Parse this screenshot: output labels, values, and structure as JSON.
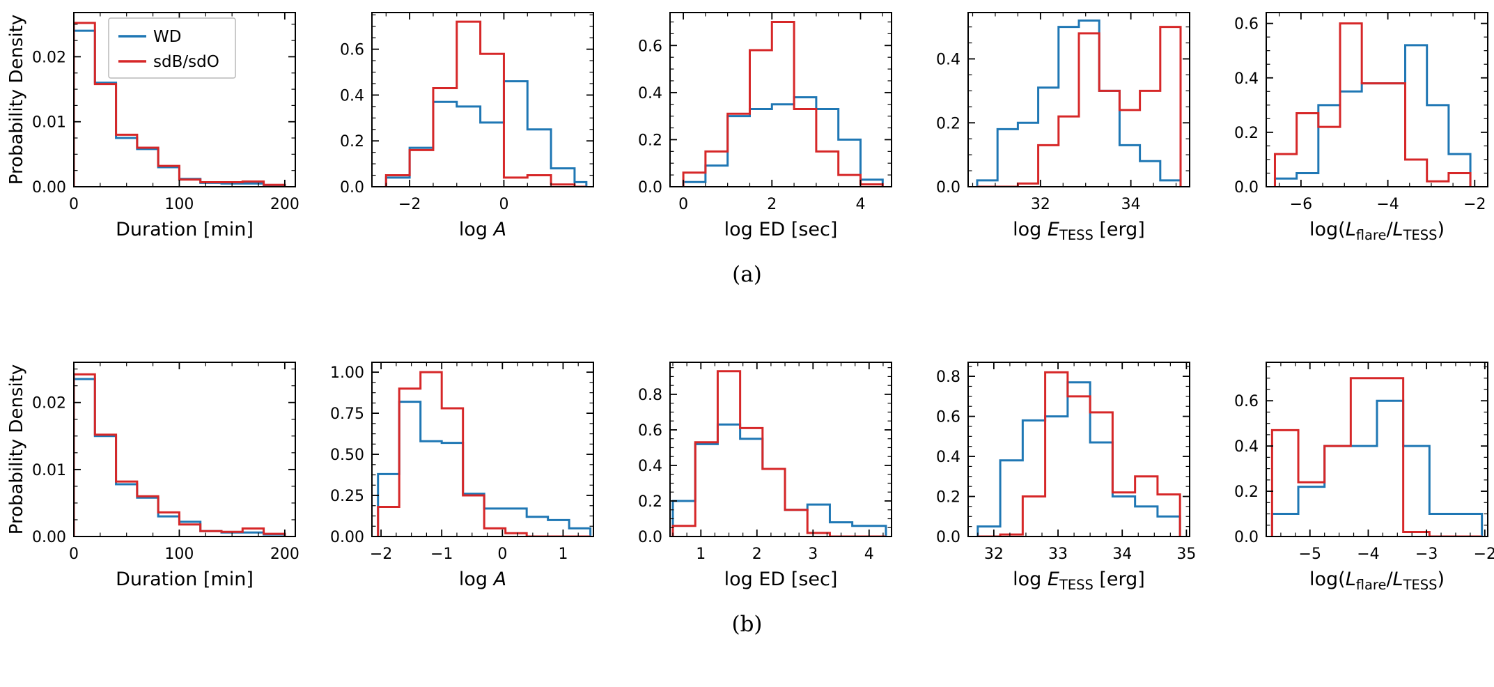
{
  "figure": {
    "captions": [
      "(a)",
      "(b)"
    ],
    "ylabel": "Probability Density",
    "legend": {
      "entries": [
        {
          "label": "WD"
        },
        {
          "label": "sdB/sdO"
        }
      ]
    },
    "colors": {
      "WD": "#1f77b4",
      "sdB/sdO": "#d62728"
    }
  },
  "chart_data": [
    {
      "id": "a1",
      "row": 0,
      "col": 0,
      "type": "step-histogram",
      "legend": true,
      "xlabel": [
        {
          "t": "Duration [min]"
        }
      ],
      "ylabel": "Probability Density",
      "xlim": [
        0,
        210
      ],
      "ylim": [
        0,
        0.0268
      ],
      "xticks": [
        0,
        100,
        200
      ],
      "xtick_labels": [
        "0",
        "100",
        "200"
      ],
      "yticks": [
        0,
        0.01,
        0.02
      ],
      "ytick_labels": [
        "0.00",
        "0.01",
        "0.02"
      ],
      "bin_edges": [
        0,
        20,
        40,
        60,
        80,
        100,
        120,
        140,
        160,
        180,
        200
      ],
      "series": [
        {
          "name": "WD",
          "values": [
            0.024,
            0.016,
            0.0075,
            0.0058,
            0.003,
            0.0012,
            0.0006,
            0.0005,
            0.0005,
            0.0002
          ]
        },
        {
          "name": "sdB/sdO",
          "values": [
            0.0252,
            0.0158,
            0.008,
            0.006,
            0.0032,
            0.0011,
            0.0007,
            0.0007,
            0.0008,
            0.0003
          ]
        }
      ]
    },
    {
      "id": "a2",
      "row": 0,
      "col": 1,
      "type": "step-histogram",
      "xlabel": [
        {
          "t": "log "
        },
        {
          "t": "A",
          "i": true
        }
      ],
      "xlim": [
        -2.8,
        1.9
      ],
      "ylim": [
        0,
        0.76
      ],
      "xticks": [
        -2,
        0
      ],
      "xtick_labels": [
        "−2",
        "0"
      ],
      "yticks": [
        0,
        0.2,
        0.4,
        0.6
      ],
      "ytick_labels": [
        "0.0",
        "0.2",
        "0.4",
        "0.6"
      ],
      "bin_edges": [
        -2.5,
        -2,
        -1.5,
        -1,
        -0.5,
        0,
        0.5,
        1,
        1.5,
        1.75
      ],
      "series": [
        {
          "name": "WD",
          "values": [
            0.04,
            0.17,
            0.37,
            0.35,
            0.28,
            0.46,
            0.25,
            0.08,
            0.02
          ]
        },
        {
          "name": "sdB/sdO",
          "values": [
            0.05,
            0.16,
            0.43,
            0.72,
            0.58,
            0.04,
            0.05,
            0.01,
            0
          ]
        }
      ]
    },
    {
      "id": "a3",
      "row": 0,
      "col": 2,
      "type": "step-histogram",
      "xlabel": [
        {
          "t": "log ED [sec]"
        }
      ],
      "xlim": [
        -0.3,
        4.7
      ],
      "ylim": [
        0,
        0.74
      ],
      "xticks": [
        0,
        2,
        4
      ],
      "xtick_labels": [
        "0",
        "2",
        "4"
      ],
      "yticks": [
        0,
        0.2,
        0.4,
        0.6
      ],
      "ytick_labels": [
        "0.0",
        "0.2",
        "0.4",
        "0.6"
      ],
      "bin_edges": [
        0,
        0.5,
        1,
        1.5,
        2,
        2.5,
        3,
        3.5,
        4,
        4.5
      ],
      "series": [
        {
          "name": "WD",
          "values": [
            0.02,
            0.09,
            0.3,
            0.33,
            0.35,
            0.38,
            0.33,
            0.2,
            0.03
          ]
        },
        {
          "name": "sdB/sdO",
          "values": [
            0.06,
            0.15,
            0.31,
            0.58,
            0.7,
            0.33,
            0.15,
            0.05,
            0.01
          ]
        }
      ]
    },
    {
      "id": "a4",
      "row": 0,
      "col": 3,
      "type": "step-histogram",
      "xlabel": [
        {
          "t": "log "
        },
        {
          "t": "E",
          "i": true
        },
        {
          "t": "TESS",
          "sub": true
        },
        {
          "t": " [erg]"
        }
      ],
      "xlim": [
        30.4,
        35.3
      ],
      "ylim": [
        0,
        0.545
      ],
      "xticks": [
        32,
        34
      ],
      "xtick_labels": [
        "32",
        "34"
      ],
      "yticks": [
        0,
        0.2,
        0.4
      ],
      "ytick_labels": [
        "0.0",
        "0.2",
        "0.4"
      ],
      "bin_edges": [
        30.6,
        31.05,
        31.5,
        31.95,
        32.4,
        32.85,
        33.3,
        33.75,
        34.2,
        34.65,
        35.1
      ],
      "series": [
        {
          "name": "WD",
          "values": [
            0.02,
            0.18,
            0.2,
            0.31,
            0.5,
            0.52,
            0.3,
            0.13,
            0.08,
            0.02
          ]
        },
        {
          "name": "sdB/sdO",
          "values": [
            0,
            0,
            0.01,
            0.13,
            0.22,
            0.48,
            0.3,
            0.24,
            0.3,
            0.5
          ]
        }
      ]
    },
    {
      "id": "a5",
      "row": 0,
      "col": 4,
      "type": "step-histogram",
      "xlabel": [
        {
          "t": "log("
        },
        {
          "t": "L",
          "i": true
        },
        {
          "t": "flare",
          "sub": true
        },
        {
          "t": "/"
        },
        {
          "t": "L",
          "i": true
        },
        {
          "t": "TESS",
          "sub": true
        },
        {
          "t": ")"
        }
      ],
      "xlim": [
        -6.8,
        -1.7
      ],
      "ylim": [
        0,
        0.64
      ],
      "xticks": [
        -6,
        -4,
        -2
      ],
      "xtick_labels": [
        "−6",
        "−4",
        "−2"
      ],
      "yticks": [
        0,
        0.2,
        0.4,
        0.6
      ],
      "ytick_labels": [
        "0.0",
        "0.2",
        "0.4",
        "0.6"
      ],
      "bin_edges": [
        -6.6,
        -6.1,
        -5.6,
        -5.1,
        -4.6,
        -4.1,
        -3.6,
        -3.1,
        -2.6,
        -2.1
      ],
      "series": [
        {
          "name": "WD",
          "values": [
            0.03,
            0.05,
            0.3,
            0.35,
            0.38,
            0.38,
            0.52,
            0.3,
            0.12
          ]
        },
        {
          "name": "sdB/sdO",
          "values": [
            0.12,
            0.27,
            0.22,
            0.6,
            0.38,
            0.38,
            0.1,
            0.02,
            0.05
          ]
        }
      ]
    },
    {
      "id": "b1",
      "row": 1,
      "col": 0,
      "type": "step-histogram",
      "xlabel": [
        {
          "t": "Duration [min]"
        }
      ],
      "ylabel": "Probability Density",
      "xlim": [
        0,
        210
      ],
      "ylim": [
        0,
        0.026
      ],
      "xticks": [
        0,
        100,
        200
      ],
      "xtick_labels": [
        "0",
        "100",
        "200"
      ],
      "yticks": [
        0,
        0.01,
        0.02
      ],
      "ytick_labels": [
        "0.00",
        "0.01",
        "0.02"
      ],
      "bin_edges": [
        0,
        20,
        40,
        60,
        80,
        100,
        120,
        140,
        160,
        180,
        200
      ],
      "series": [
        {
          "name": "WD",
          "values": [
            0.0235,
            0.015,
            0.0078,
            0.0058,
            0.003,
            0.0022,
            0.0008,
            0.0006,
            0.0006,
            0.0003
          ]
        },
        {
          "name": "sdB/sdO",
          "values": [
            0.0242,
            0.0152,
            0.0082,
            0.006,
            0.0036,
            0.0018,
            0.0008,
            0.0007,
            0.0012,
            0.0004
          ]
        }
      ]
    },
    {
      "id": "b2",
      "row": 1,
      "col": 1,
      "type": "step-histogram",
      "xlabel": [
        {
          "t": "log "
        },
        {
          "t": "A",
          "i": true
        }
      ],
      "xlim": [
        -2.15,
        1.5
      ],
      "ylim": [
        0,
        1.06
      ],
      "xticks": [
        -2,
        -1,
        0,
        1
      ],
      "xtick_labels": [
        "−2",
        "−1",
        "0",
        "1"
      ],
      "yticks": [
        0,
        0.25,
        0.5,
        0.75,
        1
      ],
      "ytick_labels": [
        "0.00",
        "0.25",
        "0.50",
        "0.75",
        "1.00"
      ],
      "bin_edges": [
        -2.05,
        -1.7,
        -1.35,
        -1.0,
        -0.65,
        -0.3,
        0.05,
        0.4,
        0.75,
        1.1,
        1.45
      ],
      "series": [
        {
          "name": "WD",
          "values": [
            0.38,
            0.82,
            0.58,
            0.57,
            0.26,
            0.17,
            0.17,
            0.12,
            0.1,
            0.05
          ]
        },
        {
          "name": "sdB/sdO",
          "values": [
            0.18,
            0.9,
            1.0,
            0.78,
            0.25,
            0.05,
            0.02,
            0,
            0,
            0
          ]
        }
      ]
    },
    {
      "id": "b3",
      "row": 1,
      "col": 2,
      "type": "step-histogram",
      "xlabel": [
        {
          "t": "log ED [sec]"
        }
      ],
      "xlim": [
        0.45,
        4.4
      ],
      "ylim": [
        0,
        0.98
      ],
      "xticks": [
        1,
        2,
        3,
        4
      ],
      "xtick_labels": [
        "1",
        "2",
        "3",
        "4"
      ],
      "yticks": [
        0,
        0.2,
        0.4,
        0.6,
        0.8
      ],
      "ytick_labels": [
        "0.0",
        "0.2",
        "0.4",
        "0.6",
        "0.8"
      ],
      "bin_edges": [
        0.5,
        0.9,
        1.3,
        1.7,
        2.1,
        2.5,
        2.9,
        3.3,
        3.7,
        4.1,
        4.3
      ],
      "series": [
        {
          "name": "WD",
          "values": [
            0.2,
            0.52,
            0.63,
            0.55,
            0.38,
            0.15,
            0.18,
            0.08,
            0.06,
            0.06
          ]
        },
        {
          "name": "sdB/sdO",
          "values": [
            0.06,
            0.53,
            0.93,
            0.61,
            0.38,
            0.15,
            0.02,
            0,
            0,
            0
          ]
        }
      ]
    },
    {
      "id": "b4",
      "row": 1,
      "col": 3,
      "type": "step-histogram",
      "xlabel": [
        {
          "t": "log "
        },
        {
          "t": "E",
          "i": true
        },
        {
          "t": "TESS",
          "sub": true
        },
        {
          "t": " [erg]"
        }
      ],
      "xlim": [
        31.6,
        35.05
      ],
      "ylim": [
        0,
        0.87
      ],
      "xticks": [
        32,
        33,
        34,
        35
      ],
      "xtick_labels": [
        "32",
        "33",
        "34",
        "35"
      ],
      "yticks": [
        0,
        0.2,
        0.4,
        0.6,
        0.8
      ],
      "ytick_labels": [
        "0.0",
        "0.2",
        "0.4",
        "0.6",
        "0.8"
      ],
      "bin_edges": [
        31.75,
        32.1,
        32.45,
        32.8,
        33.15,
        33.5,
        33.85,
        34.2,
        34.55,
        34.9
      ],
      "series": [
        {
          "name": "WD",
          "values": [
            0.05,
            0.38,
            0.58,
            0.6,
            0.77,
            0.47,
            0.2,
            0.15,
            0.1
          ]
        },
        {
          "name": "sdB/sdO",
          "values": [
            0,
            0.01,
            0.2,
            0.82,
            0.7,
            0.62,
            0.22,
            0.3,
            0.21
          ]
        }
      ]
    },
    {
      "id": "b5",
      "row": 1,
      "col": 4,
      "type": "step-histogram",
      "xlabel": [
        {
          "t": "log("
        },
        {
          "t": "L",
          "i": true
        },
        {
          "t": "flare",
          "sub": true
        },
        {
          "t": "/"
        },
        {
          "t": "L",
          "i": true
        },
        {
          "t": "TESS",
          "sub": true
        },
        {
          "t": ")"
        }
      ],
      "xlim": [
        -5.75,
        -1.95
      ],
      "ylim": [
        0,
        0.77
      ],
      "xticks": [
        -5,
        -4,
        -3,
        -2
      ],
      "xtick_labels": [
        "−5",
        "−4",
        "−3",
        "−2"
      ],
      "yticks": [
        0,
        0.2,
        0.4,
        0.6
      ],
      "ytick_labels": [
        "0.0",
        "0.2",
        "0.4",
        "0.6"
      ],
      "bin_edges": [
        -5.65,
        -5.2,
        -4.75,
        -4.3,
        -3.85,
        -3.4,
        -2.95,
        -2.5,
        -2.05
      ],
      "series": [
        {
          "name": "WD",
          "values": [
            0.1,
            0.22,
            0.4,
            0.4,
            0.6,
            0.4,
            0.1,
            0.1
          ]
        },
        {
          "name": "sdB/sdO",
          "values": [
            0.47,
            0.24,
            0.4,
            0.7,
            0.7,
            0.02,
            0,
            0
          ]
        }
      ]
    }
  ]
}
